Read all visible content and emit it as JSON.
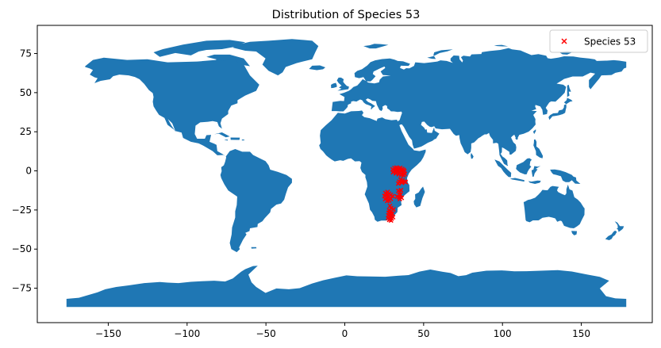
{
  "chart_data": {
    "type": "scatter",
    "title": "Distribution of Species 53",
    "xlabel": "",
    "ylabel": "",
    "xlim": [
      -195,
      195
    ],
    "ylim": [
      -97,
      93
    ],
    "x_ticks": [
      -150,
      -100,
      -50,
      0,
      50,
      100,
      150
    ],
    "y_ticks": [
      -75,
      -50,
      -25,
      0,
      25,
      50,
      75
    ],
    "grid": false,
    "legend_position": "top-right",
    "land_color": "#1f77b4",
    "series": [
      {
        "name": "Species 53",
        "marker": "x",
        "color": "#ff0000",
        "points": [
          [
            31.5,
            1.8
          ],
          [
            32.8,
            2.1
          ],
          [
            34.0,
            1.5
          ],
          [
            35.2,
            1.9
          ],
          [
            36.4,
            1.2
          ],
          [
            37.3,
            0.6
          ],
          [
            31.9,
            0.2
          ],
          [
            33.6,
            -0.4
          ],
          [
            35.0,
            -0.8
          ],
          [
            36.8,
            -1.3
          ],
          [
            37.8,
            -0.2
          ],
          [
            32.4,
            -1.6
          ],
          [
            34.2,
            -2.2
          ],
          [
            35.9,
            -2.5
          ],
          [
            37.2,
            -2.8
          ],
          [
            30.6,
            -0.9
          ],
          [
            30.4,
            0.9
          ],
          [
            33.0,
            0.8
          ],
          [
            36.0,
            0.1
          ],
          [
            38.1,
            -1.9
          ],
          [
            35.4,
            -5.5
          ],
          [
            36.6,
            -6.1
          ],
          [
            37.9,
            -6.8
          ],
          [
            34.5,
            -6.9
          ],
          [
            36.2,
            -7.6
          ],
          [
            38.6,
            -7.2
          ],
          [
            33.9,
            -8.1
          ],
          [
            35.6,
            -12.3
          ],
          [
            34.8,
            -13.6
          ],
          [
            35.3,
            -15.2
          ],
          [
            34.4,
            -16.9
          ],
          [
            33.2,
            -16.4
          ],
          [
            36.1,
            -17.3
          ],
          [
            34.9,
            -18.0
          ],
          [
            34.0,
            -12.8
          ],
          [
            25.8,
            -14.2
          ],
          [
            26.9,
            -15.0
          ],
          [
            28.0,
            -14.6
          ],
          [
            29.1,
            -15.4
          ],
          [
            25.2,
            -16.1
          ],
          [
            26.4,
            -17.2
          ],
          [
            27.7,
            -16.9
          ],
          [
            28.8,
            -17.6
          ],
          [
            25.6,
            -18.1
          ],
          [
            26.9,
            -19.2
          ],
          [
            28.1,
            -18.9
          ],
          [
            29.2,
            -17.9
          ],
          [
            27.1,
            -13.5
          ],
          [
            30.3,
            -16.2
          ],
          [
            28.6,
            -22.4
          ],
          [
            29.4,
            -23.8
          ],
          [
            28.1,
            -25.2
          ],
          [
            29.6,
            -25.9
          ],
          [
            27.9,
            -26.8
          ],
          [
            28.9,
            -27.6
          ],
          [
            30.1,
            -27.3
          ],
          [
            27.6,
            -28.4
          ],
          [
            28.7,
            -29.1
          ],
          [
            29.8,
            -28.8
          ],
          [
            27.4,
            -30.2
          ],
          [
            28.6,
            -30.8
          ],
          [
            29.7,
            -30.5
          ],
          [
            30.6,
            -29.6
          ],
          [
            28.2,
            -31.3
          ],
          [
            29.3,
            -31.7
          ],
          [
            30.9,
            -24.6
          ]
        ]
      }
    ]
  }
}
